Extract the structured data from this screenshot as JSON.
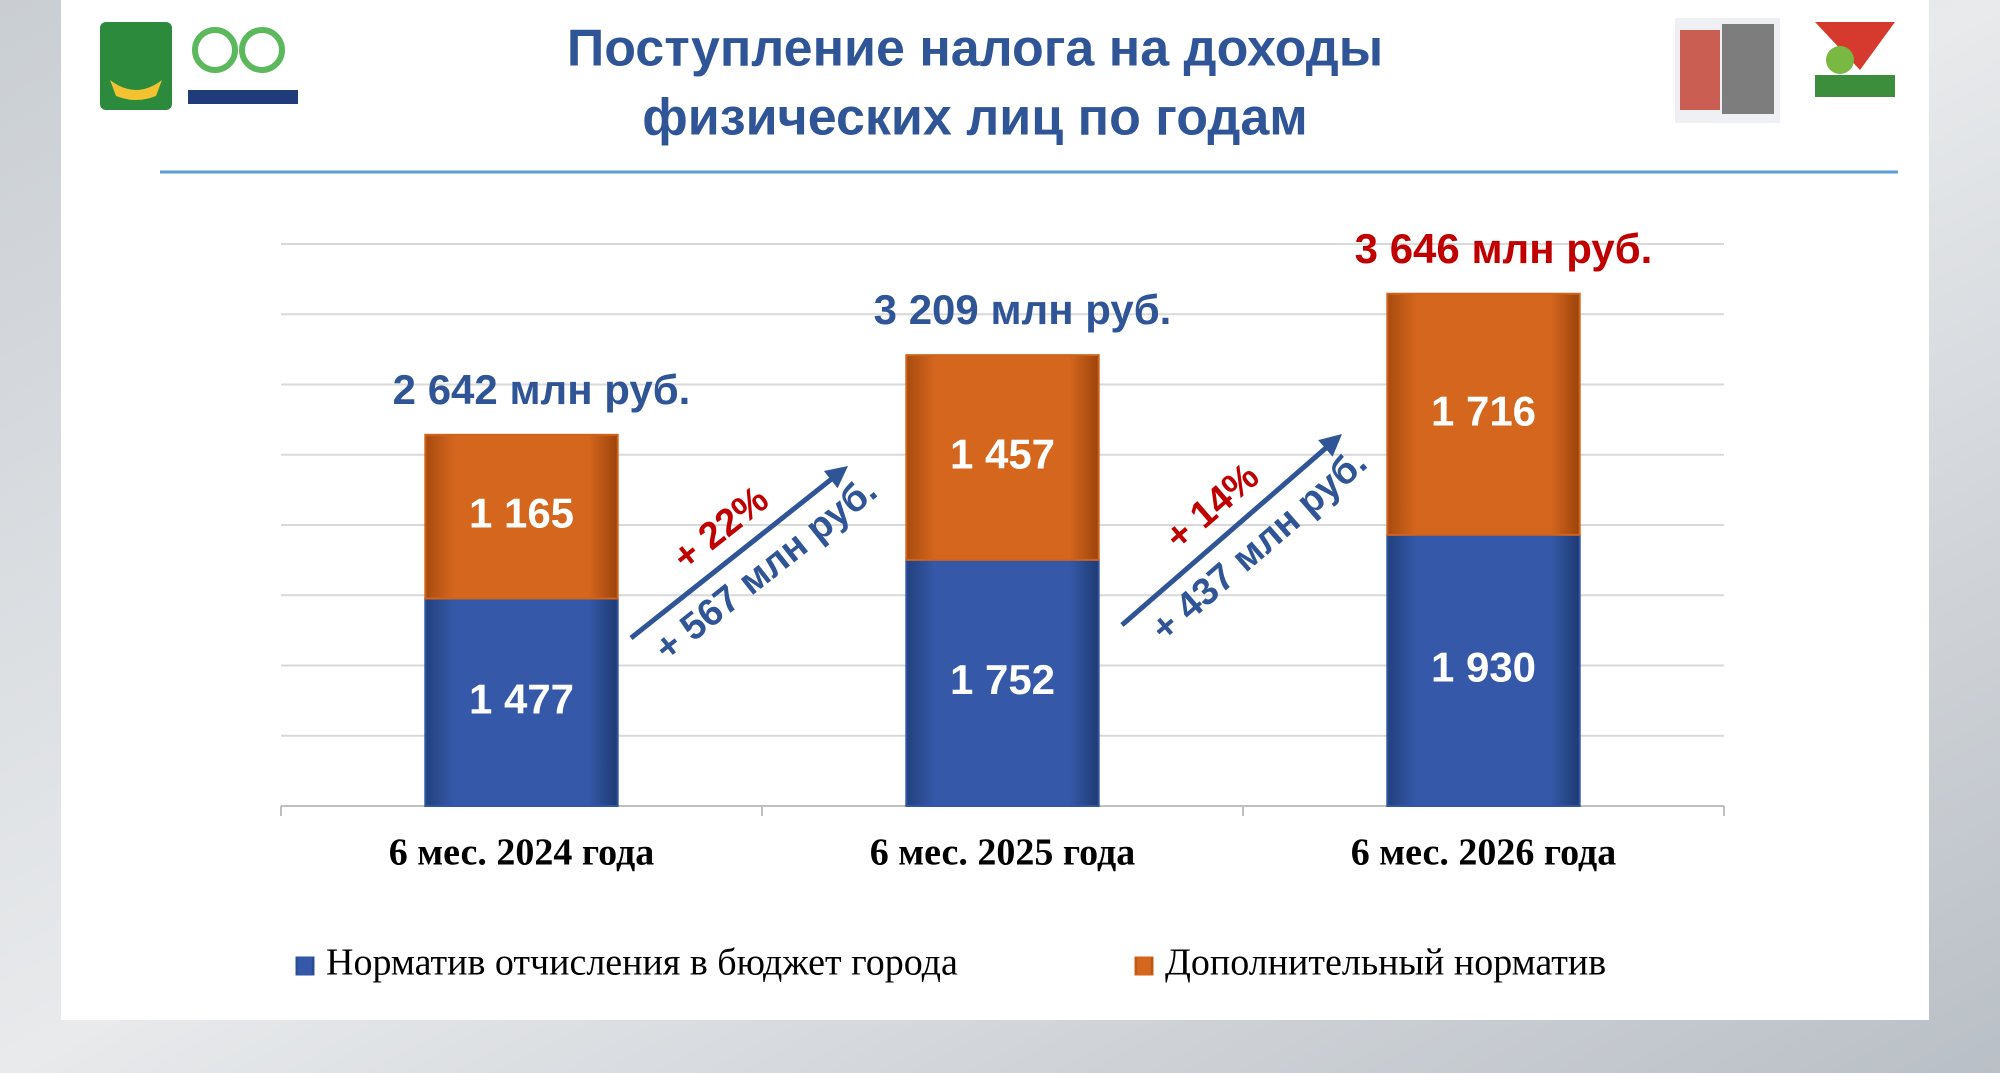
{
  "chart_data": {
    "type": "stacked_bar",
    "title": [
      "Поступление налога на доходы",
      "физических лиц по годам"
    ],
    "categories": [
      "6 мес. 2024 года",
      "6 мес. 2025 года",
      "6 мес. 2026 года"
    ],
    "series": [
      {
        "name": "Норматив отчисления в бюджет города",
        "color": "#2f55a4",
        "values": [
          1477,
          1752,
          1930
        ],
        "value_labels": [
          "1 477",
          "1 752",
          "1 930"
        ]
      },
      {
        "name": "Дополнительный норматив",
        "color": "#d0631c",
        "values": [
          1165,
          1457,
          1716
        ],
        "value_labels": [
          "1 165",
          "1 457",
          "1 716"
        ]
      }
    ],
    "total_labels": [
      "2 642 млн руб.",
      "3 209 млн руб.",
      "3 646 млн руб."
    ],
    "total_label_colors": [
      "#2f5597",
      "#2f5597",
      "#c00000"
    ],
    "growth": [
      {
        "percent": "+ 22%",
        "amount": "+ 567 млн руб."
      },
      {
        "percent": "+ 14%",
        "amount": "+ 437 млн руб."
      }
    ],
    "ylim": [
      0,
      4000
    ],
    "yticks": [
      0,
      500,
      1000,
      1500,
      2000,
      2500,
      3000,
      3500,
      4000
    ],
    "grid": true,
    "legend": "bottom"
  }
}
